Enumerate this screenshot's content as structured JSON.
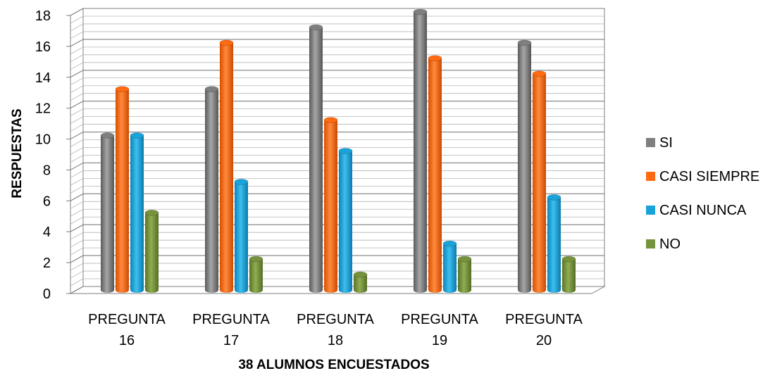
{
  "chart_data": {
    "type": "bar",
    "categories": [
      "PREGUNTA 16",
      "PREGUNTA 17",
      "PREGUNTA 18",
      "PREGUNTA 19",
      "PREGUNTA 20"
    ],
    "category_lines": [
      [
        "PREGUNTA",
        "16"
      ],
      [
        "PREGUNTA",
        "17"
      ],
      [
        "PREGUNTA",
        "18"
      ],
      [
        "PREGUNTA",
        "19"
      ],
      [
        "PREGUNTA",
        "20"
      ]
    ],
    "series": [
      {
        "name": "SI",
        "values": [
          10,
          13,
          17,
          18,
          16
        ],
        "color": "#7f7f7f"
      },
      {
        "name": "CASI SIEMPRE",
        "values": [
          13,
          16,
          11,
          15,
          14
        ],
        "color": "#ff6a13"
      },
      {
        "name": "CASI NUNCA",
        "values": [
          10,
          7,
          9,
          3,
          6
        ],
        "color": "#1aa3d9"
      },
      {
        "name": "NO",
        "values": [
          5,
          2,
          1,
          2,
          2
        ],
        "color": "#76923c"
      }
    ],
    "xlabel": "38 ALUMNOS ENCUESTADOS",
    "ylabel": "RESPUESTAS",
    "ylim": [
      0,
      18
    ],
    "yticks": [
      "0",
      "2",
      "4",
      "6",
      "8",
      "10",
      "12",
      "14",
      "16",
      "18"
    ],
    "grid": true,
    "legend_position": "right",
    "style": "3d-cylinder"
  }
}
